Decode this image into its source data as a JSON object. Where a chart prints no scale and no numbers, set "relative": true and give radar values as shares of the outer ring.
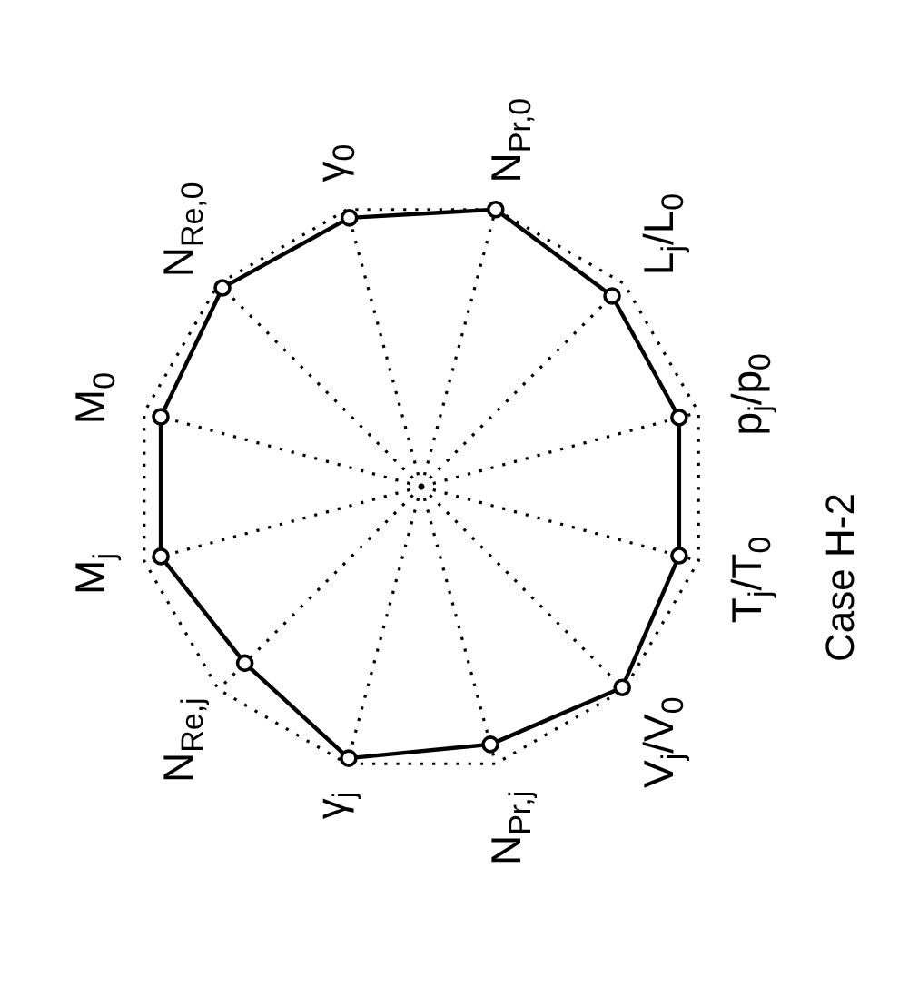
{
  "chart_data": {
    "type": "radar",
    "title": "Case H-2",
    "categories": [
      "N$_{Pr,0}$",
      "L$_{j}$/L$_{0}$",
      "p$_{j}$/p$_{0}$",
      "T$_{j}$/T$_{0}$",
      "V$_{j}$/V$_{0}$",
      "N$_{Pr,j}$",
      "γ$_{j}$",
      "N$_{Re,j}$",
      "M$_{j}$",
      "M$_{0}$",
      "N$_{Re,0}$",
      "γ$_{0}$"
    ],
    "relative": true,
    "series": [
      {
        "color": "#000000",
        "values": [
          1.0,
          0.94,
          0.93,
          0.93,
          0.99,
          0.93,
          0.98,
          0.87,
          0.94,
          0.94,
          0.98,
          0.97
        ]
      }
    ],
    "grid": true,
    "marker": "circle",
    "line_style": "solid",
    "legend": false
  }
}
